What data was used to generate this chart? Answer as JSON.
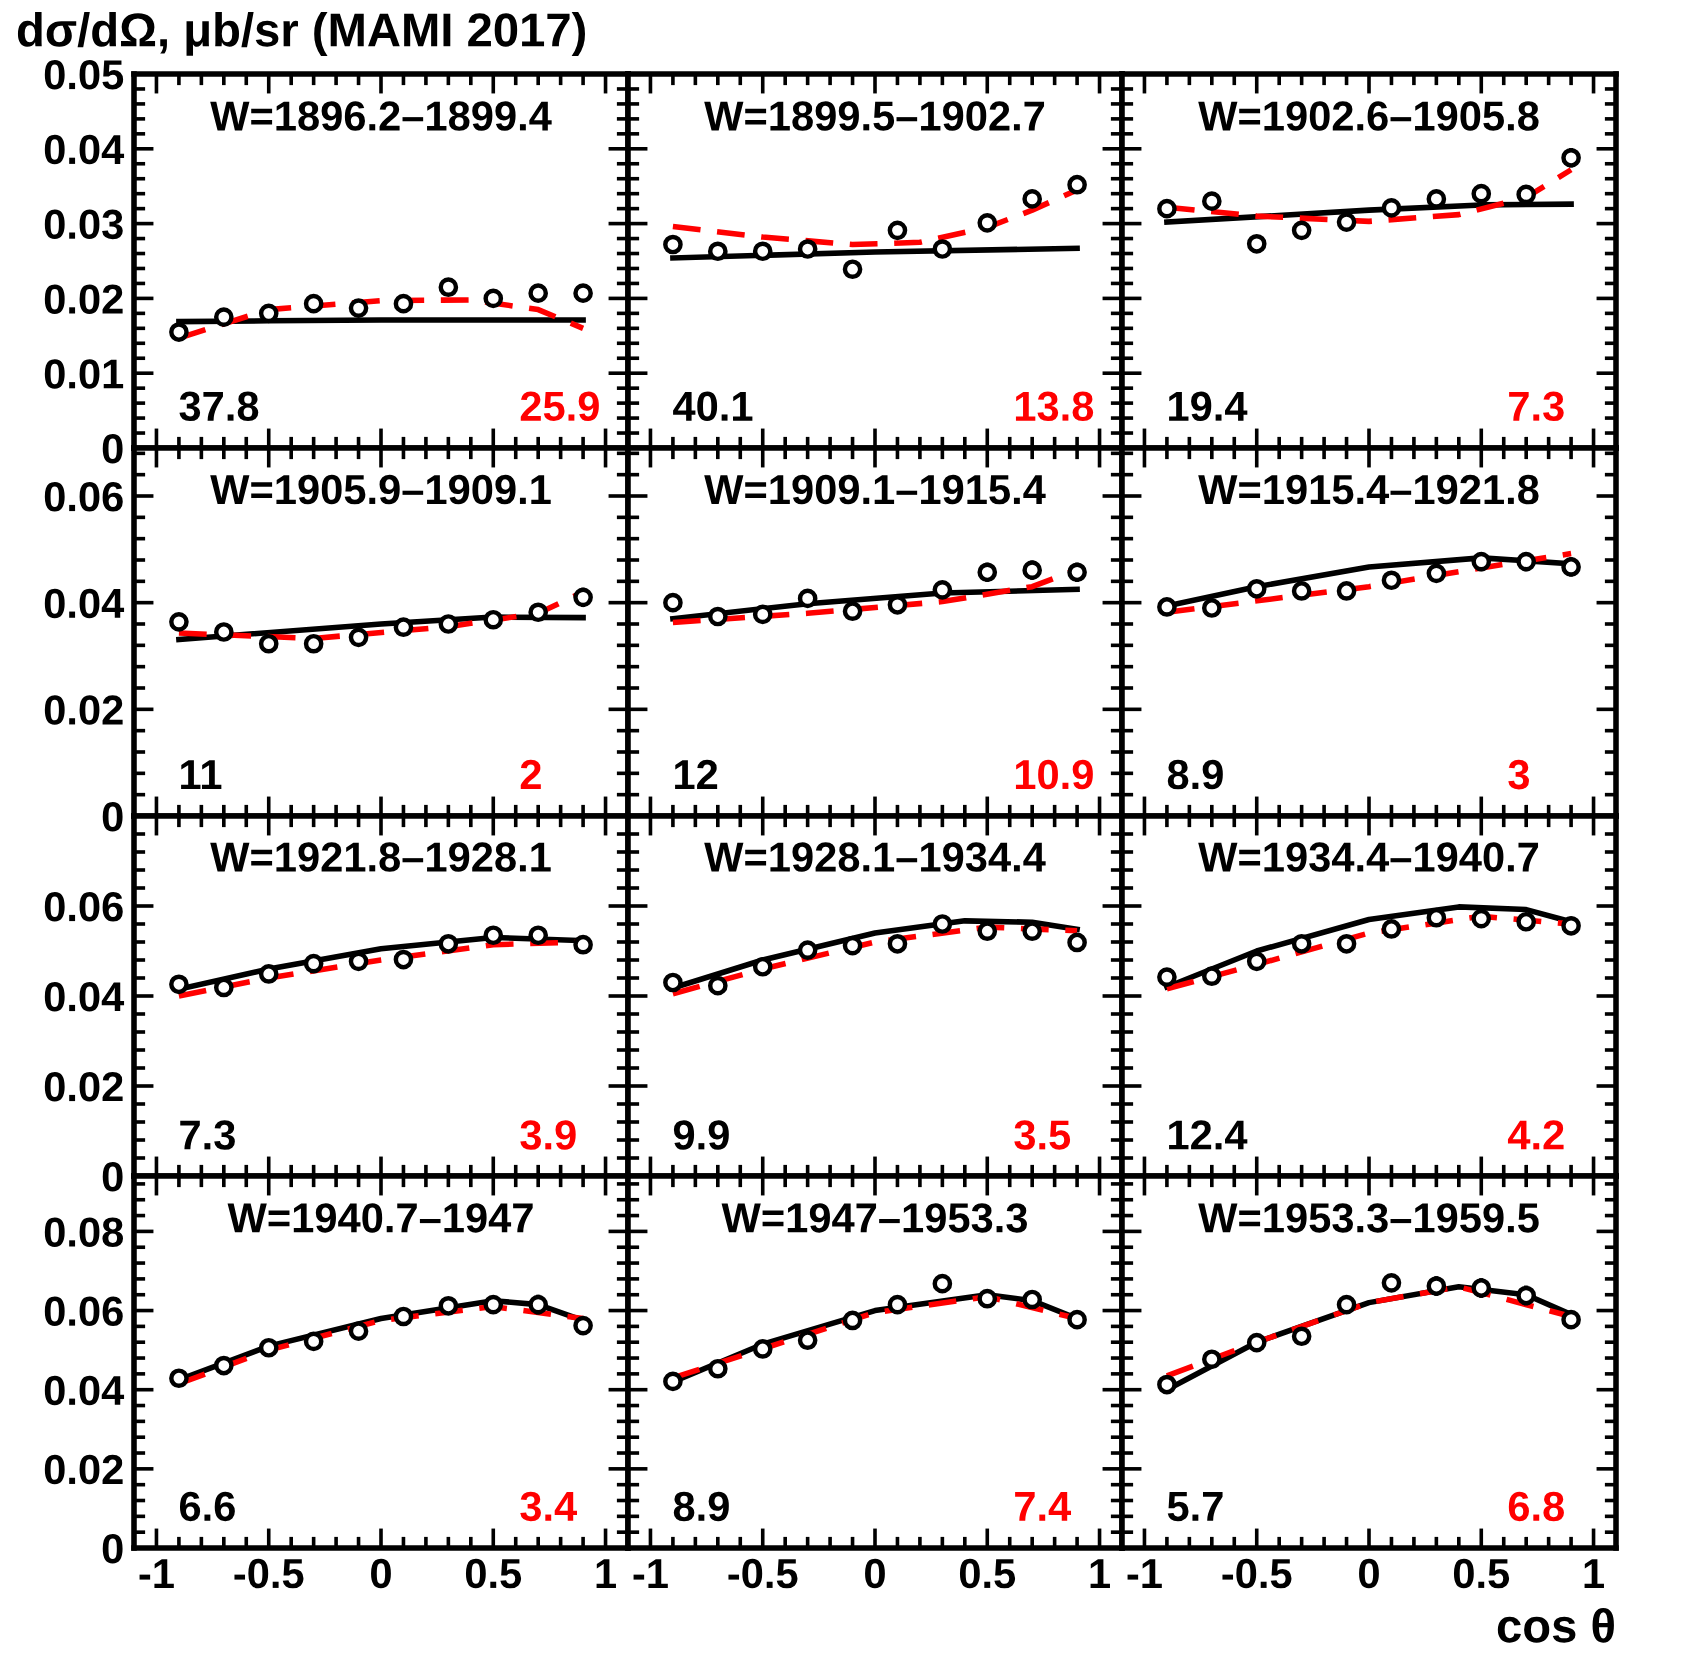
{
  "chart_data": [
    {
      "type": "scatter",
      "ylabel": "dσ/dΩ, μb/sr (MAMI 2017)",
      "title": "W=1896.2–1899.4",
      "xlim": [
        -1.1,
        1.1
      ],
      "xticks": [
        -1,
        -0.5,
        0,
        0.5,
        1
      ],
      "ylim": [
        0,
        0.05
      ],
      "yticks": [
        0,
        0.01,
        0.02,
        0.03,
        0.04,
        0.05
      ],
      "tick_labels": "y",
      "grid": false,
      "legend": false,
      "annotations": [
        "37.8",
        "25.9"
      ],
      "series": [
        {
          "color": "#000000",
          "marker": "circle",
          "x": [
            -0.9,
            -0.7,
            -0.5,
            -0.3,
            -0.1,
            0.1,
            0.3,
            0.5,
            0.7,
            0.9
          ],
          "values": [
            0.0155,
            0.0175,
            0.018,
            0.0193,
            0.0187,
            0.0193,
            0.0215,
            0.02,
            0.0207,
            0.0207
          ],
          "errors": [
            0.001,
            0.001,
            0.001,
            0.001,
            0.001,
            0.001,
            0.001,
            0.001,
            0.001,
            0.001
          ]
        },
        {
          "type": "line",
          "color": "#000000",
          "line_style": "solid",
          "x": [
            -0.9,
            -0.5,
            0,
            0.5,
            0.9
          ],
          "values": [
            0.0169,
            0.017,
            0.0171,
            0.0171,
            0.0171
          ]
        },
        {
          "type": "line",
          "color": "#ff0000",
          "line_style": "dashed",
          "x": [
            -0.9,
            -0.5,
            0,
            0.4,
            0.7,
            0.9
          ],
          "values": [
            0.0147,
            0.0185,
            0.0197,
            0.0198,
            0.0185,
            0.016
          ]
        }
      ]
    },
    {
      "type": "scatter",
      "title": "W=1899.5–1902.7",
      "xlim": [
        -1.1,
        1.1
      ],
      "xticks": [
        -1,
        -0.5,
        0,
        0.5,
        1
      ],
      "ylim": [
        0,
        0.05
      ],
      "yticks": [
        0,
        0.01,
        0.02,
        0.03,
        0.04,
        0.05
      ],
      "tick_labels": false,
      "grid": false,
      "legend": false,
      "annotations": [
        "40.1",
        "13.8"
      ],
      "series": [
        {
          "color": "#000000",
          "marker": "circle",
          "x": [
            -0.9,
            -0.7,
            -0.5,
            -0.3,
            -0.1,
            0.1,
            0.3,
            0.5,
            0.7,
            0.9
          ],
          "values": [
            0.0272,
            0.0263,
            0.0263,
            0.0266,
            0.0239,
            0.0291,
            0.0266,
            0.0301,
            0.0333,
            0.0352
          ],
          "errors": [
            0.001,
            0.001,
            0.001,
            0.001,
            0.001,
            0.001,
            0.001,
            0.001,
            0.0012,
            0.0012
          ]
        },
        {
          "type": "line",
          "color": "#000000",
          "line_style": "solid",
          "x": [
            -0.9,
            0,
            0.9
          ],
          "values": [
            0.0254,
            0.0262,
            0.0267
          ]
        },
        {
          "type": "line",
          "color": "#ff0000",
          "line_style": "dashed",
          "x": [
            -0.9,
            -0.5,
            -0.1,
            0.2,
            0.5,
            0.7,
            0.9
          ],
          "values": [
            0.0296,
            0.0282,
            0.0272,
            0.0275,
            0.0295,
            0.0318,
            0.0345
          ]
        }
      ]
    },
    {
      "type": "scatter",
      "title": "W=1902.6–1905.8",
      "xlim": [
        -1.1,
        1.1
      ],
      "xticks": [
        -1,
        -0.5,
        0,
        0.5,
        1
      ],
      "ylim": [
        0,
        0.05
      ],
      "yticks": [
        0,
        0.01,
        0.02,
        0.03,
        0.04,
        0.05
      ],
      "tick_labels": false,
      "grid": false,
      "legend": false,
      "annotations": [
        "19.4",
        "7.3"
      ],
      "series": [
        {
          "color": "#000000",
          "marker": "circle",
          "x": [
            -0.9,
            -0.7,
            -0.5,
            -0.3,
            -0.1,
            0.1,
            0.3,
            0.5,
            0.7,
            0.9
          ],
          "values": [
            0.032,
            0.033,
            0.0273,
            0.0291,
            0.0302,
            0.0321,
            0.0333,
            0.034,
            0.0339,
            0.0388
          ],
          "errors": [
            0.0012,
            0.0012,
            0.001,
            0.001,
            0.001,
            0.0012,
            0.0012,
            0.0012,
            0.001,
            0.0013
          ]
        },
        {
          "type": "line",
          "color": "#000000",
          "line_style": "solid",
          "x": [
            -0.9,
            0,
            0.5,
            0.9
          ],
          "values": [
            0.0302,
            0.0318,
            0.0325,
            0.0326
          ]
        },
        {
          "type": "line",
          "color": "#ff0000",
          "line_style": "dashed",
          "x": [
            -0.9,
            -0.5,
            0,
            0.4,
            0.7,
            0.9
          ],
          "values": [
            0.0322,
            0.031,
            0.0303,
            0.0312,
            0.0335,
            0.0372
          ]
        }
      ]
    },
    {
      "type": "scatter",
      "title": "W=1905.9–1909.1",
      "xlim": [
        -1.1,
        1.1
      ],
      "xticks": [
        -1,
        -0.5,
        0,
        0.5,
        1
      ],
      "ylim": [
        0,
        0.069
      ],
      "yticks": [
        0,
        0.02,
        0.04,
        0.06
      ],
      "tick_labels": "y",
      "grid": false,
      "legend": false,
      "annotations": [
        "11",
        "2"
      ],
      "series": [
        {
          "color": "#000000",
          "marker": "circle",
          "x": [
            -0.9,
            -0.7,
            -0.5,
            -0.3,
            -0.1,
            0.1,
            0.3,
            0.5,
            0.7,
            0.9
          ],
          "values": [
            0.0364,
            0.0345,
            0.0323,
            0.0323,
            0.0335,
            0.0354,
            0.036,
            0.0368,
            0.0382,
            0.041
          ],
          "errors": [
            0.0015,
            0.0015,
            0.0012,
            0.0012,
            0.0012,
            0.0015,
            0.0015,
            0.0015,
            0.0015,
            0.0018
          ]
        },
        {
          "type": "line",
          "color": "#000000",
          "line_style": "solid",
          "x": [
            -0.9,
            0,
            0.5,
            0.9
          ],
          "values": [
            0.0331,
            0.036,
            0.0373,
            0.0372
          ]
        },
        {
          "type": "line",
          "color": "#ff0000",
          "line_style": "dashed",
          "x": [
            -0.9,
            -0.3,
            0.3,
            0.7,
            0.9
          ],
          "values": [
            0.0343,
            0.0333,
            0.0355,
            0.038,
            0.042
          ]
        }
      ]
    },
    {
      "type": "scatter",
      "title": "W=1909.1–1915.4",
      "xlim": [
        -1.1,
        1.1
      ],
      "xticks": [
        -1,
        -0.5,
        0,
        0.5,
        1
      ],
      "ylim": [
        0,
        0.069
      ],
      "yticks": [
        0,
        0.02,
        0.04,
        0.06
      ],
      "tick_labels": false,
      "grid": false,
      "legend": false,
      "annotations": [
        "12",
        "10.9"
      ],
      "series": [
        {
          "color": "#000000",
          "marker": "circle",
          "x": [
            -0.9,
            -0.7,
            -0.5,
            -0.3,
            -0.1,
            0.1,
            0.3,
            0.5,
            0.7,
            0.9
          ],
          "values": [
            0.04,
            0.0374,
            0.0378,
            0.0408,
            0.0384,
            0.0396,
            0.0424,
            0.0457,
            0.0461,
            0.0457
          ],
          "errors": [
            0.0015,
            0.0015,
            0.0012,
            0.0015,
            0.0015,
            0.0015,
            0.0015,
            0.0018,
            0.0018,
            0.0018
          ]
        },
        {
          "type": "line",
          "color": "#000000",
          "line_style": "solid",
          "x": [
            -0.9,
            -0.3,
            0.3,
            0.9
          ],
          "values": [
            0.037,
            0.0398,
            0.0418,
            0.0425
          ]
        },
        {
          "type": "line",
          "color": "#ff0000",
          "line_style": "dashed",
          "x": [
            -0.9,
            -0.3,
            0.3,
            0.7,
            0.9
          ],
          "values": [
            0.0363,
            0.038,
            0.0402,
            0.043,
            0.0462
          ]
        }
      ]
    },
    {
      "type": "scatter",
      "title": "W=1915.4–1921.8",
      "xlim": [
        -1.1,
        1.1
      ],
      "xticks": [
        -1,
        -0.5,
        0,
        0.5,
        1
      ],
      "ylim": [
        0,
        0.069
      ],
      "yticks": [
        0,
        0.02,
        0.04,
        0.06
      ],
      "tick_labels": false,
      "grid": false,
      "legend": false,
      "annotations": [
        "8.9",
        "3"
      ],
      "series": [
        {
          "color": "#000000",
          "marker": "circle",
          "x": [
            -0.9,
            -0.7,
            -0.5,
            -0.3,
            -0.1,
            0.1,
            0.3,
            0.5,
            0.7,
            0.9
          ],
          "values": [
            0.0392,
            0.039,
            0.0426,
            0.0422,
            0.0422,
            0.0442,
            0.0455,
            0.0477,
            0.0477,
            0.0467
          ],
          "errors": [
            0.0015,
            0.0015,
            0.0015,
            0.0015,
            0.0015,
            0.0015,
            0.0015,
            0.0018,
            0.0018,
            0.0018
          ]
        },
        {
          "type": "line",
          "color": "#000000",
          "line_style": "solid",
          "x": [
            -0.9,
            -0.5,
            0,
            0.5,
            0.9
          ],
          "values": [
            0.0394,
            0.043,
            0.0467,
            0.0484,
            0.0473
          ]
        },
        {
          "type": "line",
          "color": "#ff0000",
          "line_style": "dashed",
          "x": [
            -0.9,
            0,
            0.5,
            0.9
          ],
          "values": [
            0.0382,
            0.043,
            0.0465,
            0.0492
          ]
        }
      ]
    },
    {
      "type": "scatter",
      "title": "W=1921.8–1928.1",
      "xlim": [
        -1.1,
        1.1
      ],
      "xticks": [
        -1,
        -0.5,
        0,
        0.5,
        1
      ],
      "ylim": [
        0,
        0.08
      ],
      "yticks": [
        0,
        0.02,
        0.04,
        0.06
      ],
      "tick_labels": "y",
      "grid": false,
      "legend": false,
      "annotations": [
        "7.3",
        "3.9"
      ],
      "series": [
        {
          "color": "#000000",
          "marker": "circle",
          "x": [
            -0.9,
            -0.7,
            -0.5,
            -0.3,
            -0.1,
            0.1,
            0.3,
            0.5,
            0.7,
            0.9
          ],
          "values": [
            0.0426,
            0.0419,
            0.0449,
            0.0472,
            0.0477,
            0.0481,
            0.0516,
            0.0535,
            0.0535,
            0.0514
          ],
          "errors": [
            0.0015,
            0.0015,
            0.0015,
            0.0015,
            0.0015,
            0.0015,
            0.0015,
            0.0018,
            0.0018,
            0.0018
          ]
        },
        {
          "type": "line",
          "color": "#000000",
          "line_style": "solid",
          "x": [
            -0.9,
            -0.5,
            0,
            0.5,
            0.9
          ],
          "values": [
            0.0415,
            0.046,
            0.0505,
            0.053,
            0.0523
          ]
        },
        {
          "type": "line",
          "color": "#ff0000",
          "line_style": "dashed",
          "x": [
            -0.9,
            -0.5,
            0,
            0.5,
            0.9
          ],
          "values": [
            0.04,
            0.044,
            0.048,
            0.0514,
            0.052
          ]
        }
      ]
    },
    {
      "type": "scatter",
      "title": "W=1928.1–1934.4",
      "xlim": [
        -1.1,
        1.1
      ],
      "xticks": [
        -1,
        -0.5,
        0,
        0.5,
        1
      ],
      "ylim": [
        0,
        0.08
      ],
      "yticks": [
        0,
        0.02,
        0.04,
        0.06
      ],
      "tick_labels": false,
      "grid": false,
      "legend": false,
      "annotations": [
        "9.9",
        "3.5"
      ],
      "series": [
        {
          "color": "#000000",
          "marker": "circle",
          "x": [
            -0.9,
            -0.7,
            -0.5,
            -0.3,
            -0.1,
            0.1,
            0.3,
            0.5,
            0.7,
            0.9
          ],
          "values": [
            0.043,
            0.0423,
            0.0465,
            0.0502,
            0.0512,
            0.0516,
            0.056,
            0.0544,
            0.0544,
            0.0519
          ],
          "errors": [
            0.0015,
            0.0015,
            0.0015,
            0.0015,
            0.0018,
            0.0018,
            0.0018,
            0.0018,
            0.0018,
            0.0018
          ]
        },
        {
          "type": "line",
          "color": "#000000",
          "line_style": "solid",
          "x": [
            -0.9,
            -0.5,
            0,
            0.4,
            0.7,
            0.9
          ],
          "values": [
            0.0418,
            0.048,
            0.054,
            0.0567,
            0.0564,
            0.0548
          ]
        },
        {
          "type": "line",
          "color": "#ff0000",
          "line_style": "dashed",
          "x": [
            -0.9,
            -0.5,
            0,
            0.5,
            0.9
          ],
          "values": [
            0.0405,
            0.046,
            0.052,
            0.0553,
            0.0545
          ]
        }
      ]
    },
    {
      "type": "scatter",
      "title": "W=1934.4–1940.7",
      "xlim": [
        -1.1,
        1.1
      ],
      "xticks": [
        -1,
        -0.5,
        0,
        0.5,
        1
      ],
      "ylim": [
        0,
        0.08
      ],
      "yticks": [
        0,
        0.02,
        0.04,
        0.06
      ],
      "tick_labels": false,
      "grid": false,
      "legend": false,
      "annotations": [
        "12.4",
        "4.2"
      ],
      "series": [
        {
          "color": "#000000",
          "marker": "circle",
          "x": [
            -0.9,
            -0.7,
            -0.5,
            -0.3,
            -0.1,
            0.1,
            0.3,
            0.5,
            0.7,
            0.9
          ],
          "values": [
            0.0442,
            0.0444,
            0.0477,
            0.0516,
            0.0516,
            0.0549,
            0.0574,
            0.0572,
            0.0565,
            0.0556
          ],
          "errors": [
            0.0015,
            0.0015,
            0.0018,
            0.0015,
            0.0018,
            0.0018,
            0.0018,
            0.0018,
            0.0018,
            0.002
          ]
        },
        {
          "type": "line",
          "color": "#000000",
          "line_style": "solid",
          "x": [
            -0.9,
            -0.5,
            0,
            0.4,
            0.7,
            0.9
          ],
          "values": [
            0.042,
            0.05,
            0.057,
            0.0598,
            0.0592,
            0.0565
          ]
        },
        {
          "type": "line",
          "color": "#ff0000",
          "line_style": "dashed",
          "x": [
            -0.9,
            -0.5,
            0,
            0.5,
            0.9
          ],
          "values": [
            0.0416,
            0.047,
            0.054,
            0.0577,
            0.056
          ]
        }
      ]
    },
    {
      "type": "scatter",
      "title": "W=1940.7–1947",
      "xlim": [
        -1.1,
        1.1
      ],
      "xticks": [
        -1,
        -0.5,
        0,
        0.5,
        1
      ],
      "ylim": [
        0,
        0.094
      ],
      "yticks": [
        0,
        0.02,
        0.04,
        0.06,
        0.08
      ],
      "grid": false,
      "legend": false,
      "annotations": [
        "6.6",
        "3.4"
      ],
      "series": [
        {
          "color": "#000000",
          "marker": "circle",
          "x": [
            -0.9,
            -0.7,
            -0.5,
            -0.3,
            -0.1,
            0.1,
            0.3,
            0.5,
            0.7,
            0.9
          ],
          "values": [
            0.0429,
            0.0461,
            0.0506,
            0.0522,
            0.0548,
            0.0585,
            0.0612,
            0.0615,
            0.0615,
            0.0562
          ],
          "errors": [
            0.0015,
            0.0018,
            0.0018,
            0.0018,
            0.002,
            0.002,
            0.002,
            0.002,
            0.0025,
            0.002
          ]
        },
        {
          "type": "line",
          "color": "#000000",
          "line_style": "solid",
          "x": [
            -0.9,
            -0.5,
            0,
            0.5,
            0.7,
            0.9
          ],
          "values": [
            0.0425,
            0.051,
            0.058,
            0.0625,
            0.0615,
            0.0575
          ]
        },
        {
          "type": "line",
          "color": "#ff0000",
          "line_style": "dashed",
          "x": [
            -0.9,
            -0.5,
            0,
            0.5,
            0.9
          ],
          "values": [
            0.0415,
            0.05,
            0.0575,
            0.061,
            0.058
          ]
        }
      ]
    },
    {
      "type": "scatter",
      "title": "W=1947–1953.3",
      "xlim": [
        -1.1,
        1.1
      ],
      "xticks": [
        -1,
        -0.5,
        0,
        0.5,
        1
      ],
      "ylim": [
        0,
        0.094
      ],
      "yticks": [
        0,
        0.02,
        0.04,
        0.06,
        0.08
      ],
      "tick_labels": "x",
      "grid": false,
      "legend": false,
      "annotations": [
        "8.9",
        "7.4"
      ],
      "series": [
        {
          "color": "#000000",
          "marker": "circle",
          "x": [
            -0.9,
            -0.7,
            -0.5,
            -0.3,
            -0.1,
            0.1,
            0.3,
            0.5,
            0.7,
            0.9
          ],
          "values": [
            0.0421,
            0.0453,
            0.0503,
            0.0525,
            0.0575,
            0.0615,
            0.0668,
            0.063,
            0.0628,
            0.0577
          ],
          "errors": [
            0.0015,
            0.0018,
            0.0018,
            0.002,
            0.002,
            0.0022,
            0.0022,
            0.0022,
            0.0022,
            0.0022
          ]
        },
        {
          "type": "line",
          "color": "#000000",
          "line_style": "solid",
          "x": [
            -0.9,
            -0.5,
            0,
            0.5,
            0.7,
            0.9
          ],
          "values": [
            0.042,
            0.0515,
            0.06,
            0.064,
            0.0625,
            0.058
          ]
        },
        {
          "type": "line",
          "color": "#ff0000",
          "line_style": "dashed",
          "x": [
            -0.9,
            0,
            0.5,
            0.9
          ],
          "values": [
            0.043,
            0.0595,
            0.0635,
            0.058
          ]
        }
      ]
    },
    {
      "type": "scatter",
      "title": "W=1953.3–1959.5",
      "xlabel": "cos θ",
      "xlim": [
        -1.1,
        1.1
      ],
      "xticks": [
        -1,
        -0.5,
        0,
        0.5,
        1
      ],
      "ylim": [
        0,
        0.094
      ],
      "yticks": [
        0,
        0.02,
        0.04,
        0.06,
        0.08
      ],
      "tick_labels": "x",
      "grid": false,
      "legend": false,
      "annotations": [
        "5.7",
        "6.8"
      ],
      "series": [
        {
          "color": "#000000",
          "marker": "circle",
          "x": [
            -0.9,
            -0.7,
            -0.5,
            -0.3,
            -0.1,
            0.1,
            0.3,
            0.5,
            0.7,
            0.9
          ],
          "values": [
            0.0413,
            0.0477,
            0.0519,
            0.0535,
            0.0615,
            0.067,
            0.0662,
            0.0657,
            0.0638,
            0.0577
          ],
          "errors": [
            0.0015,
            0.0018,
            0.0018,
            0.002,
            0.002,
            0.0022,
            0.0025,
            0.0025,
            0.0025,
            0.0022
          ]
        },
        {
          "type": "line",
          "color": "#000000",
          "line_style": "solid",
          "x": [
            -0.9,
            -0.5,
            0,
            0.4,
            0.7,
            0.9
          ],
          "values": [
            0.04,
            0.052,
            0.062,
            0.066,
            0.064,
            0.059
          ]
        },
        {
          "type": "line",
          "color": "#ff0000",
          "line_style": "dashed",
          "x": [
            -0.9,
            -0.5,
            0,
            0.4,
            0.9
          ],
          "values": [
            0.0435,
            0.052,
            0.062,
            0.066,
            0.0585
          ]
        }
      ]
    }
  ]
}
